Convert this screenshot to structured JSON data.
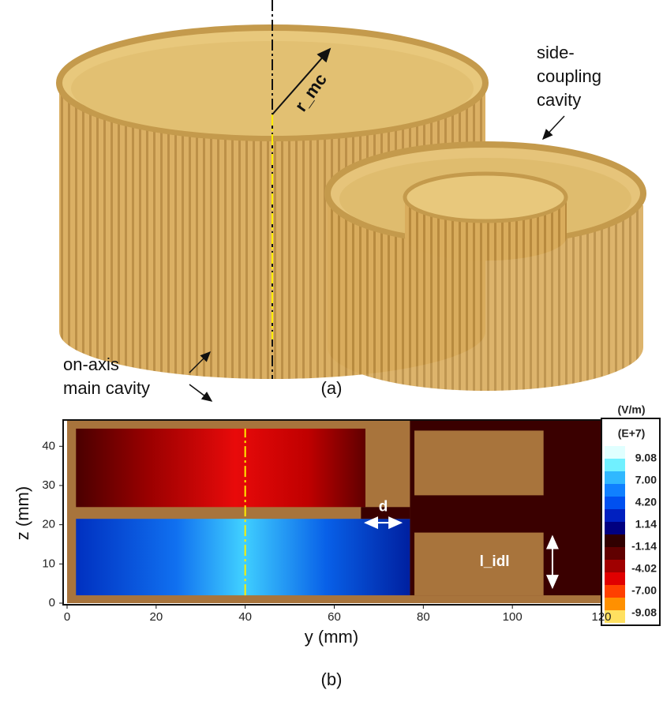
{
  "panel_a": {
    "radius_label": "r_mc",
    "side_label": [
      "side-",
      "coupling",
      "cavity"
    ],
    "main_label": [
      "on-axis",
      "main cavity"
    ],
    "caption": "(a)"
  },
  "panel_b": {
    "xlabel": "y (mm)",
    "ylabel": "z (mm)",
    "xlim": [
      0,
      120
    ],
    "ylim": [
      0,
      46.5
    ],
    "xticks": [
      0,
      20,
      40,
      60,
      80,
      100,
      120
    ],
    "yticks": [
      0,
      10,
      20,
      30,
      40
    ],
    "annotations": [
      "d",
      "l_idl"
    ],
    "colorbar": {
      "unit": "(V/m)",
      "scale": "(E+7)",
      "labels": [
        "9.08",
        "7.00",
        "4.20",
        "1.14",
        "-1.14",
        "-4.02",
        "-7.00",
        "-9.08"
      ]
    },
    "caption": "(b)"
  }
}
